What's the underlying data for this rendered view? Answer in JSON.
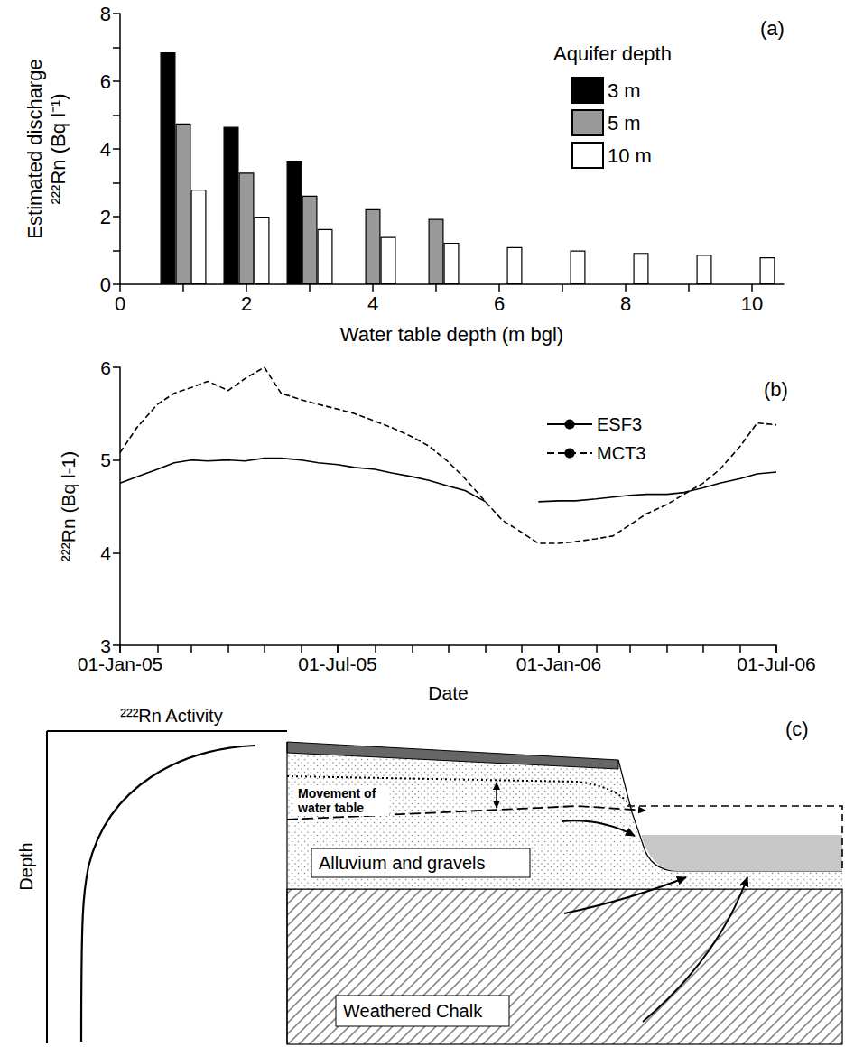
{
  "chart_data": [
    {
      "type": "bar",
      "panel_label": "(a)",
      "x_label": "Water table depth (m bgl)",
      "y_label": [
        "Estimated discharge",
        "²²²Rn (Bq l⁻¹)"
      ],
      "legend_title": "Aquifer depth",
      "legend": "upper right",
      "grid": false,
      "xlim": [
        0,
        10.5
      ],
      "xticks": [
        0,
        2,
        4,
        6,
        8,
        10
      ],
      "ylim": [
        0,
        8
      ],
      "yticks": [
        0,
        2,
        4,
        6,
        8
      ],
      "series": [
        {
          "name": "3 m",
          "color": "#000000",
          "x": [
            1,
            2,
            3
          ],
          "values": [
            6.85,
            4.65,
            3.65
          ]
        },
        {
          "name": "5 m",
          "color": "#999999",
          "x": [
            1,
            2,
            3,
            4,
            5
          ],
          "values": [
            4.75,
            3.3,
            2.62,
            2.22,
            1.93
          ]
        },
        {
          "name": "10 m",
          "color": "#ffffff",
          "x": [
            1,
            2,
            3,
            4,
            5,
            6,
            7,
            8,
            9,
            10
          ],
          "values": [
            2.8,
            2.0,
            1.63,
            1.4,
            1.23,
            1.1,
            1.0,
            0.93,
            0.87,
            0.8
          ]
        }
      ]
    },
    {
      "type": "line",
      "panel_label": "(b)",
      "x_label": "Date",
      "y_label": "²²²Rn (Bq l-1)",
      "legend": "upper right",
      "grid": false,
      "xlim": [
        "2005-01-01",
        "2006-07-01"
      ],
      "xticks": [
        {
          "value": "2005-01-01",
          "label": "01-Jan-05"
        },
        {
          "value": "2005-07-01",
          "label": "01-Jul-05"
        },
        {
          "value": "2006-01-01",
          "label": "01-Jan-06"
        },
        {
          "value": "2006-07-01",
          "label": "01-Jul-06"
        }
      ],
      "ylim": [
        3,
        6
      ],
      "yticks": [
        3,
        4,
        5,
        6
      ],
      "x": [
        "2005-01-01",
        "2005-01-15",
        "2005-02-01",
        "2005-02-15",
        "2005-03-01",
        "2005-03-15",
        "2005-04-01",
        "2005-04-15",
        "2005-05-01",
        "2005-05-15",
        "2005-06-01",
        "2005-06-15",
        "2005-07-01",
        "2005-07-15",
        "2005-08-01",
        "2005-08-15",
        "2005-09-01",
        "2005-09-15",
        "2005-10-01",
        "2005-10-15",
        "2005-11-01",
        "2005-11-15",
        "2005-12-01",
        "2005-12-15",
        "2006-01-01",
        "2006-01-15",
        "2006-02-01",
        "2006-02-15",
        "2006-03-01",
        "2006-03-15",
        "2006-04-01",
        "2006-04-15",
        "2006-05-01",
        "2006-05-15",
        "2006-06-01",
        "2006-06-15",
        "2006-07-01"
      ],
      "series": [
        {
          "name": "ESF3",
          "color": "#000000",
          "line_style": "solid",
          "values": [
            4.75,
            4.82,
            4.9,
            4.97,
            5.0,
            4.99,
            5.0,
            4.99,
            5.02,
            5.02,
            5.0,
            4.97,
            4.95,
            4.92,
            4.9,
            4.86,
            4.82,
            4.78,
            4.72,
            4.67,
            4.55,
            null,
            null,
            4.55,
            4.56,
            4.56,
            4.58,
            4.6,
            4.62,
            4.63,
            4.63,
            4.65,
            4.7,
            4.75,
            4.8,
            4.85,
            4.87
          ]
        },
        {
          "name": "MCT3",
          "color": "#000000",
          "line_style": "dashed",
          "values": [
            5.08,
            5.35,
            5.6,
            5.72,
            5.78,
            5.85,
            5.75,
            5.88,
            6.0,
            5.72,
            5.65,
            5.6,
            5.55,
            5.5,
            5.42,
            5.35,
            5.25,
            5.15,
            4.98,
            4.8,
            4.55,
            4.35,
            4.22,
            4.1,
            4.1,
            4.12,
            4.15,
            4.18,
            4.3,
            4.42,
            4.52,
            4.63,
            4.75,
            4.9,
            5.15,
            5.4,
            5.38
          ]
        }
      ]
    }
  ],
  "diagram": {
    "panel_label": "(c)",
    "profile": {
      "title": "²²²Rn Activity",
      "axis_label": "Depth"
    },
    "labels": {
      "water_table": "Movement of water table",
      "alluvium": "Alluvium and gravels",
      "chalk": "Weathered Chalk"
    }
  }
}
